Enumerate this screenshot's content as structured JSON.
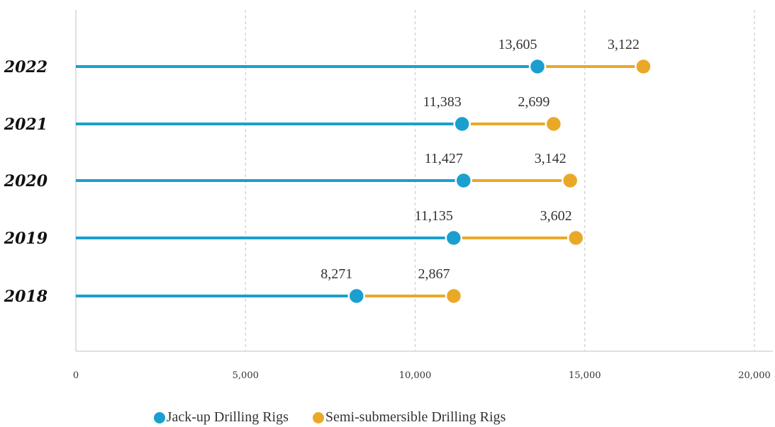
{
  "chart_data": {
    "type": "dumbbell",
    "categories": [
      "2018",
      "2019",
      "2020",
      "2021",
      "2022"
    ],
    "series": [
      {
        "name": "Jack-up Drilling Rigs",
        "values": [
          8271,
          11135,
          11427,
          11383,
          13605
        ],
        "color": "#1a9fcf"
      },
      {
        "name": "Semi-submersible Drilling Rigs",
        "values": [
          2867,
          3602,
          3142,
          2699,
          3122
        ],
        "color": "#e9a927"
      }
    ],
    "value_labels": {
      "jackup": [
        "8,271",
        "11,135",
        "11,427",
        "11,383",
        "13,605"
      ],
      "semi": [
        "2,867",
        "3,602",
        "3,142",
        "2,699",
        "3,122"
      ]
    },
    "xticks": [
      "0",
      "5,000",
      "10,000",
      "15,000",
      "20,000"
    ],
    "xlim": [
      0,
      20000
    ],
    "grid": "vertical dashed",
    "legend_position": "bottom"
  },
  "legend": {
    "jackup_label": "Jack-up Drilling Rigs",
    "semi_label": "Semi-submersible Drilling Rigs"
  }
}
